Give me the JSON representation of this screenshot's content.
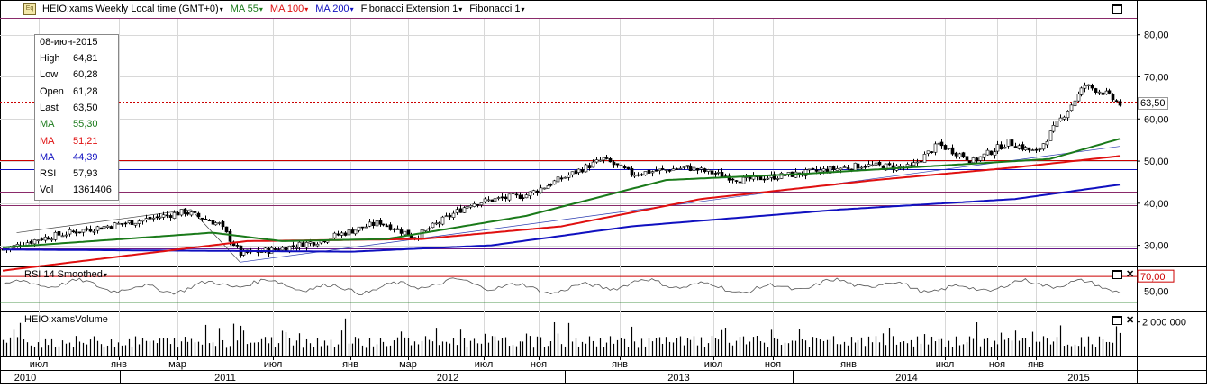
{
  "toolbar": {
    "symbol_label": "HEIO:xams Weekly Local time (GMT+0)",
    "ma55_label": "MA 55",
    "ma100_label": "MA 100",
    "ma200_label": "MA 200",
    "fib_ext_label": "Fibonacci Extension 1",
    "fib_label": "Fibonacci 1",
    "logo_text": "Eq",
    "colors": {
      "ma55": "#1a7a1a",
      "ma100": "#e01010",
      "ma200": "#1010c0",
      "fib": "#404040"
    }
  },
  "info_box": {
    "date": "08-июн-2015",
    "rows": [
      {
        "key": "High",
        "value": "64,81",
        "color": "#000000"
      },
      {
        "key": "Low",
        "value": "60,28",
        "color": "#000000"
      },
      {
        "key": "Open",
        "value": "61,28",
        "color": "#000000"
      },
      {
        "key": "Last",
        "value": "63,50",
        "color": "#000000"
      },
      {
        "key": "MA",
        "value": "55,30",
        "color": "#1a7a1a"
      },
      {
        "key": "MA",
        "value": "51,21",
        "color": "#e01010"
      },
      {
        "key": "MA",
        "value": "44,39",
        "color": "#1010c0"
      },
      {
        "key": "RSI",
        "value": "57,93",
        "color": "#000000"
      },
      {
        "key": "Vol",
        "value": "1361406",
        "color": "#000000"
      }
    ]
  },
  "panes": {
    "rsi_title": "RSI 14 Smoothed",
    "volume_title": "HEIO:xamsVolume"
  },
  "chart_data": {
    "type": "candlestick",
    "interval": "weekly",
    "price_axis": {
      "ticks": [
        30,
        40,
        50,
        60,
        70,
        80
      ],
      "labels": [
        "30,00",
        "40,00",
        "50,00",
        "60,00",
        "70,00",
        "80,00"
      ],
      "range": [
        25,
        84
      ]
    },
    "last_price": 63.5,
    "last_price_label": "63,50",
    "x_months": [
      "июл",
      "янв",
      "мар",
      "июл",
      "янв",
      "мар",
      "июл",
      "ноя",
      "янв",
      "июл",
      "ноя",
      "янв",
      "июл",
      "ноя",
      "янв"
    ],
    "x_years": [
      "2010",
      "2011",
      "2012",
      "2013",
      "2014",
      "2015"
    ],
    "price_anchors": [
      [
        0,
        29.0
      ],
      [
        10,
        31.5
      ],
      [
        22,
        33.5
      ],
      [
        40,
        36.0
      ],
      [
        52,
        38.0
      ],
      [
        62,
        35.0
      ],
      [
        68,
        28.0
      ],
      [
        78,
        29.0
      ],
      [
        90,
        31.0
      ],
      [
        108,
        35.5
      ],
      [
        118,
        32.0
      ],
      [
        134,
        40.0
      ],
      [
        150,
        42.0
      ],
      [
        172,
        50.5
      ],
      [
        180,
        47.0
      ],
      [
        196,
        48.5
      ],
      [
        212,
        45.5
      ],
      [
        228,
        47.0
      ],
      [
        246,
        49.0
      ],
      [
        260,
        48.5
      ],
      [
        268,
        54.0
      ],
      [
        278,
        50.0
      ],
      [
        288,
        54.5
      ],
      [
        296,
        52.0
      ],
      [
        310,
        68.0
      ],
      [
        316,
        66.0
      ],
      [
        320,
        63.5
      ]
    ],
    "ma55_anchors": [
      [
        0,
        29.5
      ],
      [
        60,
        33.0
      ],
      [
        80,
        31.0
      ],
      [
        110,
        31.5
      ],
      [
        150,
        37.0
      ],
      [
        190,
        45.5
      ],
      [
        230,
        47.0
      ],
      [
        270,
        49.0
      ],
      [
        300,
        50.5
      ],
      [
        320,
        55.3
      ]
    ],
    "ma100_anchors": [
      [
        0,
        24.0
      ],
      [
        70,
        31.0
      ],
      [
        120,
        31.5
      ],
      [
        160,
        34.5
      ],
      [
        200,
        41.0
      ],
      [
        250,
        45.5
      ],
      [
        290,
        48.5
      ],
      [
        320,
        51.2
      ]
    ],
    "ma200_anchors": [
      [
        0,
        29.0
      ],
      [
        100,
        28.5
      ],
      [
        140,
        30.0
      ],
      [
        180,
        34.5
      ],
      [
        240,
        38.5
      ],
      [
        290,
        41.0
      ],
      [
        320,
        44.4
      ]
    ],
    "horizontal_levels": [
      {
        "price": 64.2,
        "color": "#cc0000",
        "dotted": true
      },
      {
        "price": 51.0,
        "color": "#cc0000",
        "dotted": false
      },
      {
        "price": 50.2,
        "color": "#cc0000",
        "dotted": false
      },
      {
        "price": 48.0,
        "color": "#1010c0",
        "dotted": false
      },
      {
        "price": 42.8,
        "color": "#8a2a6a",
        "dotted": false
      },
      {
        "price": 39.5,
        "color": "#8a2a6a",
        "dotted": false
      },
      {
        "price": 29.7,
        "color": "#6a1a8a",
        "dotted": false
      },
      {
        "price": 29.3,
        "color": "#6a1a8a",
        "dotted": false
      },
      {
        "price": 84.0,
        "color": "#8a2a6a",
        "dotted": false
      }
    ],
    "rsi_axis": {
      "ticks": [
        70,
        50
      ],
      "labels": [
        "70,00",
        "50,00"
      ]
    },
    "volume_axis": {
      "ticks": [
        2000000
      ],
      "labels": [
        "2 000 000"
      ]
    },
    "volume_max": 2400000
  }
}
